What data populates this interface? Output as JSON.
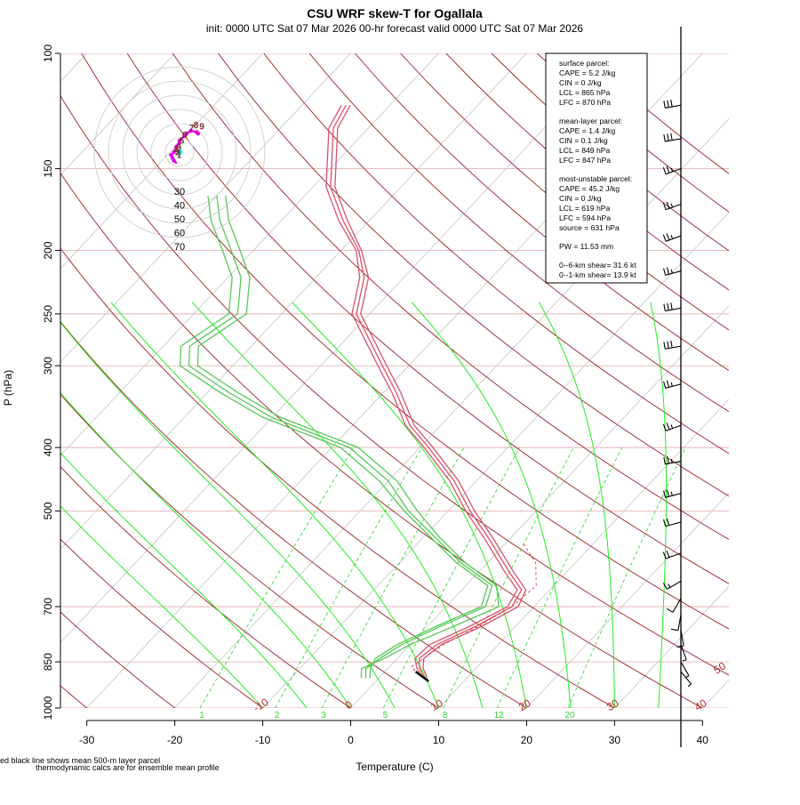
{
  "title": "CSU WRF skew-T for Ogallala",
  "subtitle": "init: 0000 UTC Sat 07 Mar 2026     00-hr forecast valid 0000 UTC Sat 07 Mar 2026",
  "footnotes": [
    "ed black line shows mean 500-m layer parcel",
    "thermodynamic calcs are for ensemble mean profile"
  ],
  "stats": {
    "surface_header": "surface parcel:",
    "surface_lines": [
      "CAPE = 5.2 J/kg",
      "CIN = 0 J/kg",
      "LCL = 865 hPa",
      "LFC = 870 hPa"
    ],
    "mixed_header": "mean-layer parcel:",
    "mixed_lines": [
      "CAPE = 1.4 J/kg",
      "CIN = 0.1 J/kg",
      "LCL = 849 hPa",
      "LFC = 847 hPa"
    ],
    "mu_header": "most-unstable parcel:",
    "mu_lines": [
      "CAPE = 45.2 J/kg",
      "CIN = 0 J/kg",
      "LCL = 619 hPa",
      "LFC = 594 hPa",
      "source = 631 hPa"
    ],
    "pw_line": "PW =  11.53 mm",
    "shear_lines": [
      "0--6-km shear= 31.6 kt",
      "0--1-km shear= 13.9 kt"
    ]
  },
  "colors": {
    "temperature": "#d9506a",
    "dewpoint": "#55c855",
    "dry_adiabat": "#9b2020",
    "moist_adiabat": "#22ee22",
    "mixing_ratio": "#2fd12f",
    "isobar": "#e7b3b3",
    "isotherm": "#bdbdbd",
    "hodograph": "#e000e0",
    "barbs": "#000000"
  },
  "hodograph": {
    "ring_labels": [
      "30",
      "40",
      "50",
      "60",
      "70"
    ],
    "height_labels": [
      "1",
      "2",
      "3",
      "4",
      "5",
      "6",
      "7",
      "8",
      "9"
    ]
  },
  "chart_data": {
    "type": "line",
    "x_label": "Temperature (C)",
    "y_label": "P (hPa)",
    "x_ticks": [
      -30,
      -20,
      -10,
      0,
      10,
      20,
      30,
      40
    ],
    "y_ticks": [
      100,
      150,
      200,
      250,
      300,
      400,
      500,
      700,
      850,
      1000
    ],
    "xlim": [
      -33,
      43
    ],
    "ylim": [
      1000,
      100
    ],
    "y_scale": "log",
    "dry_adiabat_labels": [
      "-10",
      "0",
      "10",
      "20",
      "30",
      "40",
      "50"
    ],
    "mixing_ratio_labels": [
      "1",
      "2",
      "3",
      "5",
      "8",
      "12",
      "20"
    ],
    "series": [
      {
        "kind": "temperature",
        "points": [
          [
            900,
            5.2
          ],
          [
            870,
            3.6
          ],
          [
            840,
            2.5
          ],
          [
            800,
            3.0
          ],
          [
            750,
            5.5
          ],
          [
            700,
            7.5
          ],
          [
            660,
            6.8
          ],
          [
            620,
            3.5
          ],
          [
            550,
            -2.5
          ],
          [
            500,
            -7.5
          ],
          [
            450,
            -12.5
          ],
          [
            400,
            -19.0
          ],
          [
            370,
            -23.5
          ],
          [
            330,
            -28.5
          ],
          [
            300,
            -33.0
          ],
          [
            250,
            -41.5
          ],
          [
            220,
            -44.5
          ],
          [
            200,
            -48.0
          ],
          [
            180,
            -53.0
          ],
          [
            160,
            -58.0
          ],
          [
            130,
            -64.0
          ],
          [
            120,
            -65.0
          ]
        ]
      },
      {
        "kind": "temperature",
        "points": [
          [
            900,
            5.0
          ],
          [
            870,
            3.3
          ],
          [
            840,
            2.0
          ],
          [
            800,
            2.2
          ],
          [
            750,
            4.8
          ],
          [
            700,
            7.0
          ],
          [
            660,
            6.3
          ],
          [
            620,
            3.0
          ],
          [
            550,
            -3.0
          ],
          [
            500,
            -8.0
          ],
          [
            450,
            -13.0
          ],
          [
            400,
            -19.5
          ],
          [
            370,
            -24.0
          ],
          [
            330,
            -29.0
          ],
          [
            300,
            -33.5
          ],
          [
            250,
            -42.0
          ],
          [
            220,
            -45.0
          ],
          [
            200,
            -48.3
          ],
          [
            180,
            -53.5
          ],
          [
            160,
            -58.5
          ],
          [
            130,
            -64.5
          ],
          [
            120,
            -65.5
          ]
        ]
      },
      {
        "kind": "temperature",
        "points": [
          [
            900,
            5.5
          ],
          [
            870,
            4.0
          ],
          [
            840,
            3.0
          ],
          [
            800,
            3.5
          ],
          [
            750,
            6.2
          ],
          [
            700,
            8.2
          ],
          [
            660,
            7.3
          ],
          [
            620,
            4.0
          ],
          [
            550,
            -2.0
          ],
          [
            500,
            -7.0
          ],
          [
            450,
            -12.0
          ],
          [
            400,
            -18.5
          ],
          [
            370,
            -23.0
          ],
          [
            330,
            -28.0
          ],
          [
            300,
            -32.5
          ],
          [
            250,
            -41.0
          ],
          [
            220,
            -44.0
          ],
          [
            200,
            -47.7
          ],
          [
            180,
            -52.5
          ],
          [
            160,
            -57.5
          ],
          [
            130,
            -63.5
          ],
          [
            120,
            -64.5
          ]
        ]
      },
      {
        "kind": "dewpoint",
        "points": [
          [
            900,
            -1.5
          ],
          [
            870,
            -2.5
          ],
          [
            840,
            -2.0
          ],
          [
            800,
            -1.0
          ],
          [
            750,
            1.5
          ],
          [
            700,
            4.5
          ],
          [
            650,
            3.0
          ],
          [
            600,
            -3.0
          ],
          [
            550,
            -8.5
          ],
          [
            500,
            -14.5
          ],
          [
            450,
            -20.0
          ],
          [
            400,
            -28.0
          ],
          [
            360,
            -40.0
          ],
          [
            330,
            -47.5
          ],
          [
            300,
            -55.0
          ],
          [
            280,
            -57.0
          ],
          [
            250,
            -55.0
          ],
          [
            220,
            -58.5
          ],
          [
            200,
            -62.5
          ],
          [
            180,
            -67.0
          ],
          [
            165,
            -70.0
          ]
        ]
      },
      {
        "kind": "dewpoint",
        "points": [
          [
            900,
            -2.0
          ],
          [
            870,
            -3.0
          ],
          [
            840,
            -1.5
          ],
          [
            800,
            0.0
          ],
          [
            750,
            3.0
          ],
          [
            700,
            6.0
          ],
          [
            650,
            3.5
          ],
          [
            600,
            -2.5
          ],
          [
            550,
            -8.0
          ],
          [
            500,
            -13.5
          ],
          [
            450,
            -19.0
          ],
          [
            400,
            -27.0
          ],
          [
            360,
            -39.0
          ],
          [
            330,
            -46.5
          ],
          [
            300,
            -54.0
          ],
          [
            280,
            -56.0
          ],
          [
            250,
            -54.0
          ],
          [
            220,
            -57.5
          ],
          [
            200,
            -61.5
          ],
          [
            180,
            -66.0
          ],
          [
            165,
            -69.0
          ]
        ]
      },
      {
        "kind": "dewpoint",
        "points": [
          [
            900,
            -1.0
          ],
          [
            870,
            -2.0
          ],
          [
            840,
            -2.5
          ],
          [
            800,
            -1.5
          ],
          [
            750,
            1.0
          ],
          [
            700,
            4.0
          ],
          [
            650,
            2.5
          ],
          [
            600,
            -3.5
          ],
          [
            550,
            -9.0
          ],
          [
            500,
            -15.0
          ],
          [
            450,
            -21.0
          ],
          [
            400,
            -29.0
          ],
          [
            360,
            -41.0
          ],
          [
            330,
            -48.5
          ],
          [
            300,
            -56.0
          ],
          [
            280,
            -58.0
          ],
          [
            250,
            -56.0
          ],
          [
            220,
            -59.5
          ],
          [
            200,
            -63.5
          ],
          [
            180,
            -68.0
          ],
          [
            165,
            -71.0
          ]
        ]
      }
    ],
    "parcel": {
      "points": [
        [
          900,
          5.0
        ],
        [
          865,
          2.5
        ],
        [
          800,
          3.8
        ],
        [
          750,
          5.8
        ],
        [
          700,
          7.5
        ],
        [
          650,
          8.0
        ],
        [
          600,
          5.5
        ],
        [
          560,
          2.0
        ]
      ]
    },
    "hodograph_uv_kt": [
      [
        -2,
        -8
      ],
      [
        -4,
        -6
      ],
      [
        -5,
        -4
      ],
      [
        -6,
        -2
      ],
      [
        -4,
        0
      ],
      [
        -2,
        4
      ],
      [
        0,
        8
      ],
      [
        5,
        13
      ],
      [
        8,
        15
      ],
      [
        12,
        14
      ],
      [
        13,
        13
      ]
    ],
    "wind_barbs": [
      {
        "p": 120,
        "dir": 260,
        "kt": 30
      },
      {
        "p": 135,
        "dir": 260,
        "kt": 30
      },
      {
        "p": 150,
        "dir": 250,
        "kt": 25
      },
      {
        "p": 170,
        "dir": 250,
        "kt": 25
      },
      {
        "p": 190,
        "dir": 250,
        "kt": 25
      },
      {
        "p": 215,
        "dir": 255,
        "kt": 25
      },
      {
        "p": 245,
        "dir": 260,
        "kt": 30
      },
      {
        "p": 280,
        "dir": 260,
        "kt": 30
      },
      {
        "p": 320,
        "dir": 255,
        "kt": 25
      },
      {
        "p": 370,
        "dir": 250,
        "kt": 25
      },
      {
        "p": 420,
        "dir": 260,
        "kt": 25
      },
      {
        "p": 470,
        "dir": 255,
        "kt": 25
      },
      {
        "p": 520,
        "dir": 255,
        "kt": 20
      },
      {
        "p": 580,
        "dir": 250,
        "kt": 20
      },
      {
        "p": 640,
        "dir": 240,
        "kt": 15
      },
      {
        "p": 680,
        "dir": 210,
        "kt": 10
      },
      {
        "p": 720,
        "dir": 190,
        "kt": 10
      },
      {
        "p": 760,
        "dir": 170,
        "kt": 10
      },
      {
        "p": 800,
        "dir": 160,
        "kt": 5
      },
      {
        "p": 850,
        "dir": 150,
        "kt": 5
      },
      {
        "p": 880,
        "dir": 140,
        "kt": 5
      }
    ]
  }
}
